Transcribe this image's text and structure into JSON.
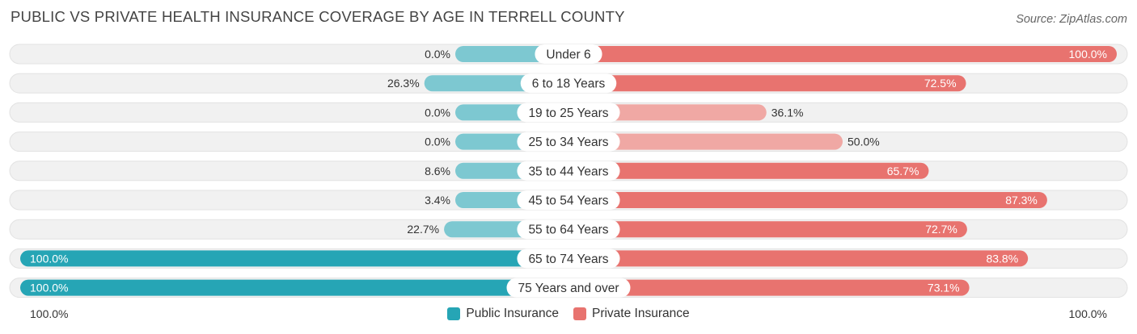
{
  "header": {
    "title": "PUBLIC VS PRIVATE HEALTH INSURANCE COVERAGE BY AGE IN TERRELL COUNTY",
    "source": "Source: ZipAtlas.com"
  },
  "axis": {
    "left_label": "100.0%",
    "right_label": "100.0%"
  },
  "legend": {
    "public_label": "Public Insurance",
    "private_label": "Private Insurance"
  },
  "colors": {
    "public": "#26a5b5",
    "public_light": "#7dc8d1",
    "private": "#e8736f",
    "private_light": "#f0a8a4",
    "row_bg": "#f1f1f1"
  },
  "chart_data": {
    "type": "bar",
    "orientation": "horizontal-diverging",
    "title": "PUBLIC VS PRIVATE HEALTH INSURANCE COVERAGE BY AGE IN TERRELL COUNTY",
    "categories": [
      "Under 6",
      "6 to 18 Years",
      "19 to 25 Years",
      "25 to 34 Years",
      "35 to 44 Years",
      "45 to 54 Years",
      "55 to 64 Years",
      "65 to 74 Years",
      "75 Years and over"
    ],
    "series": [
      {
        "name": "Public Insurance",
        "values": [
          0.0,
          26.3,
          0.0,
          0.0,
          8.6,
          3.4,
          22.7,
          100.0,
          100.0
        ],
        "labels": [
          "0.0%",
          "26.3%",
          "0.0%",
          "0.0%",
          "8.6%",
          "3.4%",
          "22.7%",
          "100.0%",
          "100.0%"
        ]
      },
      {
        "name": "Private Insurance",
        "values": [
          100.0,
          72.5,
          36.1,
          50.0,
          65.7,
          87.3,
          72.7,
          83.8,
          73.1
        ],
        "labels": [
          "100.0%",
          "72.5%",
          "36.1%",
          "50.0%",
          "65.7%",
          "87.3%",
          "72.7%",
          "83.8%",
          "73.1%"
        ]
      }
    ],
    "xlim": [
      -100,
      100
    ],
    "legend_position": "bottom-center",
    "grid": false
  }
}
